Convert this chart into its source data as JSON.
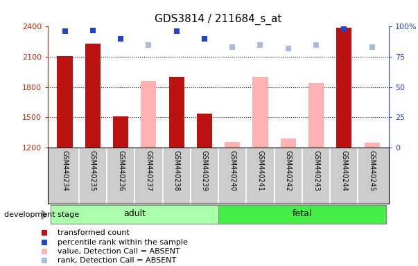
{
  "title": "GDS3814 / 211684_s_at",
  "samples": [
    "GSM440234",
    "GSM440235",
    "GSM440236",
    "GSM440237",
    "GSM440238",
    "GSM440239",
    "GSM440240",
    "GSM440241",
    "GSM440242",
    "GSM440243",
    "GSM440244",
    "GSM440245"
  ],
  "red_bars": {
    "GSM440234": 2105,
    "GSM440235": 2230,
    "GSM440236": 1510,
    "GSM440238": 1900,
    "GSM440239": 1540,
    "GSM440244": 2390
  },
  "pink_bars": {
    "GSM440237": 1860,
    "GSM440240": 1258,
    "GSM440241": 1900,
    "GSM440242": 1290,
    "GSM440243": 1840,
    "GSM440245": 1248
  },
  "blue_squares": {
    "GSM440234": 96,
    "GSM440235": 97,
    "GSM440236": 90,
    "GSM440238": 96,
    "GSM440239": 90,
    "GSM440244": 98
  },
  "lightblue_squares": {
    "GSM440237": 85,
    "GSM440240": 83,
    "GSM440241": 85,
    "GSM440242": 82,
    "GSM440243": 85,
    "GSM440245": 83
  },
  "ylim_left": [
    1200,
    2400
  ],
  "ylim_right": [
    0,
    100
  ],
  "yticks_left": [
    1200,
    1500,
    1800,
    2100,
    2400
  ],
  "yticks_right": [
    0,
    25,
    50,
    75,
    100
  ],
  "bar_color_red": "#BB1111",
  "bar_color_pink": "#FFB0B0",
  "square_color_blue": "#2244CC",
  "square_color_lightblue": "#AABBDD",
  "group_adult_color": "#AAFFAA",
  "group_fetal_color": "#44EE44",
  "tick_label_area_color": "#CCCCCC",
  "bar_width": 0.55,
  "adult_indices": [
    0,
    1,
    2,
    3,
    4,
    5
  ],
  "fetal_indices": [
    6,
    7,
    8,
    9,
    10,
    11
  ]
}
